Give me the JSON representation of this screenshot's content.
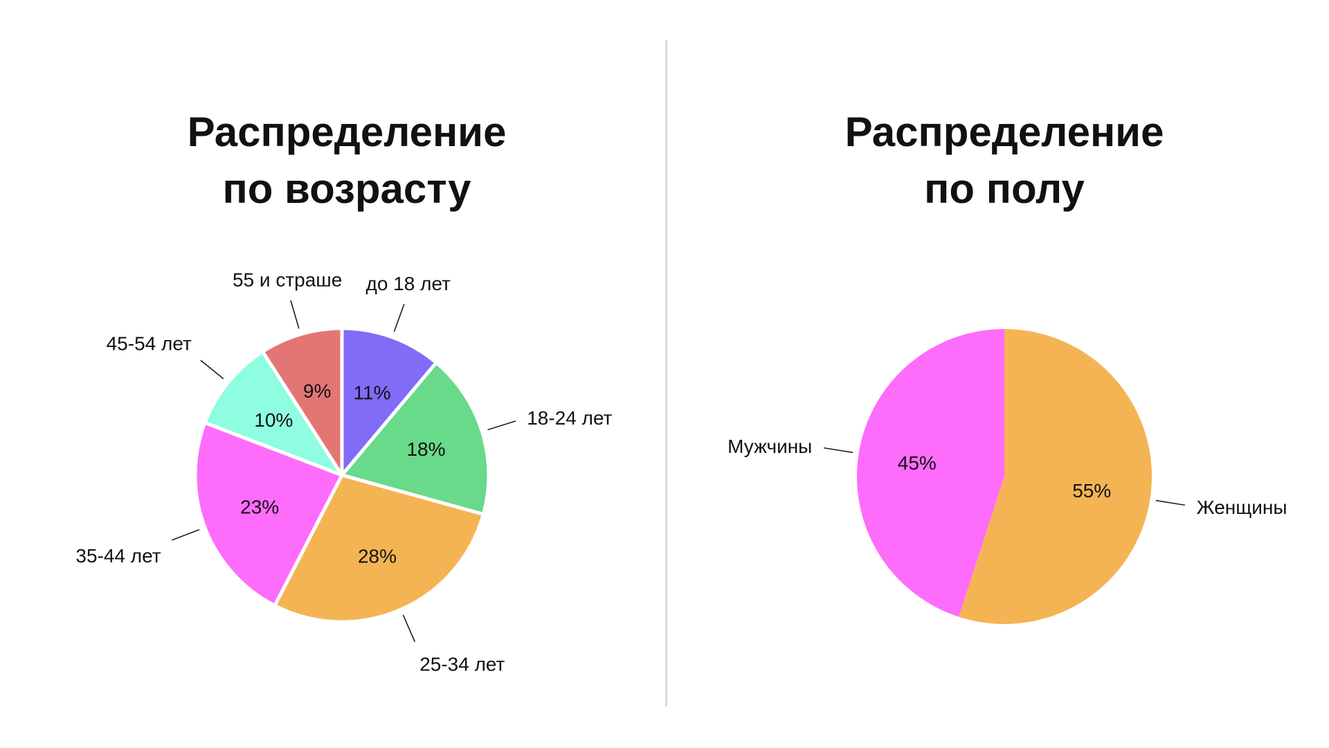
{
  "chart_data": [
    {
      "type": "pie",
      "title": "Распределение по возрасту",
      "title_lines": [
        "Распределение",
        "по возрасту"
      ],
      "start": "top",
      "direction": "clockwise",
      "slices": [
        {
          "label": "до 18 лет",
          "value": 11,
          "value_label": "11%",
          "color": "#806cf6"
        },
        {
          "label": "18-24 лет",
          "value": 18,
          "value_label": "18%",
          "color": "#69d98a"
        },
        {
          "label": "25-34 лет",
          "value": 28,
          "value_label": "28%",
          "color": "#f5b453"
        },
        {
          "label": "35-44 лет",
          "value": 23,
          "value_label": "23%",
          "color": "#fe6cfb"
        },
        {
          "label": "45-54 лет",
          "value": 10,
          "value_label": "10%",
          "color": "#8ffde0"
        },
        {
          "label": "55 и страше",
          "value": 9,
          "value_label": "9%",
          "color": "#e47575"
        }
      ]
    },
    {
      "type": "pie",
      "title": "Распределение по полу",
      "title_lines": [
        "Распределение",
        "по полу"
      ],
      "start": "top",
      "direction": "clockwise",
      "slices": [
        {
          "label": "Женщины",
          "value": 55,
          "value_label": "55%",
          "color": "#f5b453"
        },
        {
          "label": "Мужчины",
          "value": 45,
          "value_label": "45%",
          "color": "#fe6cfb"
        }
      ]
    }
  ]
}
